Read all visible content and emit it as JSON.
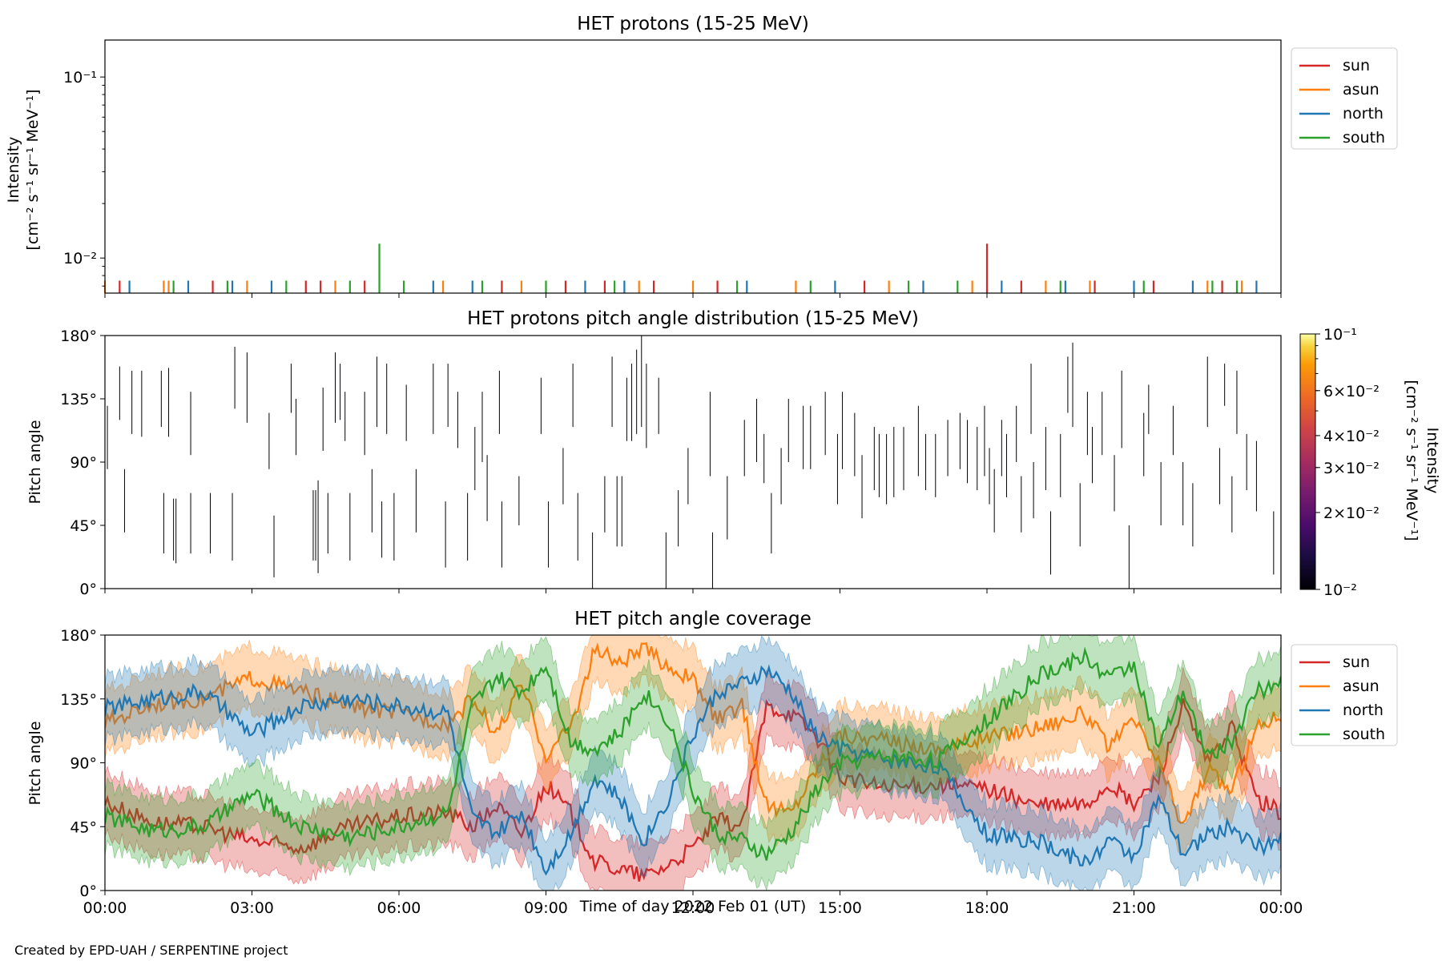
{
  "figure": {
    "xlabel": "Time of day 2022 Feb 01 (UT)",
    "credit": "Created by EPD-UAH / SERPENTINE project"
  },
  "colors": {
    "sun": "#d62728",
    "asun": "#ff7f0e",
    "north": "#1f77b4",
    "south": "#2ca02c"
  },
  "chart_data": [
    {
      "type": "bar",
      "title": "HET protons (15-25 MeV)",
      "ylabel_line1": "Intensity",
      "ylabel_line2": "[cm⁻² s⁻¹ sr⁻¹ MeV⁻¹]",
      "yscale": "log",
      "ylim": [
        0.0064,
        0.16
      ],
      "ytick_labels": [
        "10⁻²",
        "10⁻¹"
      ],
      "ytick_values": [
        0.01,
        0.1
      ],
      "xlim_hours": [
        0,
        24
      ],
      "xtick_labels": [
        "00:00",
        "03:00",
        "06:00",
        "09:00",
        "12:00",
        "15:00",
        "18:00",
        "21:00",
        "00:00"
      ],
      "baseline": 0.0075,
      "legend": {
        "placement": "upper-right-outside",
        "entries": [
          "sun",
          "asun",
          "north",
          "south"
        ]
      },
      "series": [
        {
          "name": "sun",
          "color": "#d62728",
          "x": [
            0.3,
            2.2,
            4.1,
            4.4,
            5.3,
            8.1,
            9.4,
            10.2,
            11.2,
            12.5,
            15.5,
            18.0,
            18.7,
            20.2,
            21.4,
            22.8
          ],
          "y": [
            0.0075,
            0.0075,
            0.0075,
            0.0075,
            0.0075,
            0.0075,
            0.0075,
            0.0075,
            0.0075,
            0.0075,
            0.0075,
            0.012,
            0.0075,
            0.0075,
            0.0075,
            0.0075
          ]
        },
        {
          "name": "asun",
          "color": "#ff7f0e",
          "x": [
            0.0,
            1.2,
            1.3,
            2.9,
            4.7,
            6.9,
            8.5,
            10.9,
            12.0,
            14.1,
            16.0,
            17.7,
            19.2,
            20.1,
            22.5,
            23.2
          ],
          "y": [
            0.0075,
            0.0075,
            0.0075,
            0.0075,
            0.0075,
            0.0075,
            0.0075,
            0.0075,
            0.0075,
            0.0075,
            0.0075,
            0.0075,
            0.0075,
            0.0075,
            0.0075,
            0.0075
          ]
        },
        {
          "name": "north",
          "color": "#1f77b4",
          "x": [
            0.5,
            1.7,
            2.6,
            3.4,
            6.7,
            7.5,
            9.8,
            10.6,
            13.1,
            14.9,
            16.7,
            18.3,
            19.6,
            21.0,
            22.2,
            23.5
          ],
          "y": [
            0.0075,
            0.0075,
            0.0075,
            0.0075,
            0.0075,
            0.0075,
            0.0075,
            0.0075,
            0.0075,
            0.0075,
            0.0075,
            0.0075,
            0.0075,
            0.0075,
            0.0075,
            0.0075
          ]
        },
        {
          "name": "south",
          "color": "#2ca02c",
          "x": [
            1.4,
            2.5,
            3.7,
            5.0,
            5.6,
            6.1,
            7.7,
            9.0,
            10.4,
            12.9,
            14.4,
            16.4,
            17.4,
            19.5,
            21.2,
            22.6,
            23.1
          ],
          "y": [
            0.0075,
            0.0075,
            0.0075,
            0.0075,
            0.012,
            0.0075,
            0.0075,
            0.0075,
            0.0075,
            0.0075,
            0.0075,
            0.0075,
            0.0075,
            0.0075,
            0.0075,
            0.0075,
            0.0075
          ]
        }
      ]
    },
    {
      "type": "heatmap",
      "title": "HET protons pitch angle distribution (15-25 MeV)",
      "ylabel": "Pitch angle",
      "ylim": [
        0,
        180
      ],
      "ytick_labels": [
        "0°",
        "45°",
        "90°",
        "135°",
        "180°"
      ],
      "ytick_values": [
        0,
        45,
        90,
        135,
        180
      ],
      "xlim_hours": [
        0,
        24
      ],
      "colorbar": {
        "scale": "log",
        "range": [
          0.01,
          0.1
        ],
        "label_line1": "Intensity",
        "label_line2": "[cm⁻² s⁻¹ sr⁻¹ MeV⁻¹]",
        "tick_values": [
          0.01,
          0.02,
          0.03,
          0.04,
          0.06,
          0.1
        ],
        "tick_labels": [
          "10⁻²",
          "2×10⁻²",
          "3×10⁻²",
          "4×10⁻²",
          "6×10⁻²",
          "10⁻¹"
        ]
      },
      "segments": [
        [
          0.05,
          85,
          130
        ],
        [
          0.3,
          120,
          158
        ],
        [
          0.4,
          40,
          85
        ],
        [
          0.55,
          110,
          155
        ],
        [
          0.75,
          108,
          155
        ],
        [
          1.15,
          115,
          155
        ],
        [
          1.2,
          25,
          68
        ],
        [
          1.3,
          108,
          157
        ],
        [
          1.4,
          20,
          64
        ],
        [
          1.45,
          18,
          64
        ],
        [
          1.75,
          25,
          68
        ],
        [
          1.75,
          95,
          140
        ],
        [
          2.15,
          25,
          68
        ],
        [
          2.6,
          20,
          68
        ],
        [
          2.65,
          128,
          172
        ],
        [
          2.9,
          118,
          168
        ],
        [
          3.35,
          85,
          125
        ],
        [
          3.45,
          8,
          52
        ],
        [
          3.8,
          125,
          160
        ],
        [
          3.9,
          95,
          135
        ],
        [
          4.25,
          20,
          70
        ],
        [
          4.3,
          20,
          70
        ],
        [
          4.35,
          11,
          77
        ],
        [
          4.45,
          98,
          143
        ],
        [
          4.55,
          25,
          68
        ],
        [
          4.7,
          118,
          168
        ],
        [
          4.8,
          120,
          160
        ],
        [
          4.9,
          105,
          140
        ],
        [
          5.0,
          20,
          68
        ],
        [
          5.3,
          95,
          140
        ],
        [
          5.45,
          40,
          85
        ],
        [
          5.55,
          115,
          165
        ],
        [
          5.65,
          22,
          62
        ],
        [
          5.75,
          110,
          160
        ],
        [
          5.9,
          20,
          68
        ],
        [
          6.15,
          105,
          145
        ],
        [
          6.35,
          40,
          85
        ],
        [
          6.7,
          110,
          160
        ],
        [
          6.95,
          15,
          62
        ],
        [
          7.0,
          115,
          160
        ],
        [
          7.2,
          100,
          140
        ],
        [
          7.4,
          20,
          68
        ],
        [
          7.55,
          70,
          115
        ],
        [
          7.7,
          90,
          140
        ],
        [
          7.8,
          48,
          95
        ],
        [
          8.05,
          110,
          155
        ],
        [
          8.1,
          15,
          62
        ],
        [
          8.45,
          45,
          80
        ],
        [
          8.9,
          110,
          150
        ],
        [
          9.05,
          15,
          62
        ],
        [
          9.35,
          60,
          100
        ],
        [
          9.55,
          115,
          160
        ],
        [
          9.65,
          20,
          68
        ],
        [
          9.95,
          0,
          40
        ],
        [
          10.2,
          40,
          80
        ],
        [
          10.35,
          115,
          165
        ],
        [
          10.45,
          30,
          80
        ],
        [
          10.55,
          30,
          80
        ],
        [
          10.65,
          105,
          150
        ],
        [
          10.75,
          105,
          160
        ],
        [
          10.85,
          110,
          170
        ],
        [
          10.95,
          115,
          180
        ],
        [
          11.05,
          100,
          160
        ],
        [
          11.3,
          110,
          150
        ],
        [
          11.45,
          0,
          40
        ],
        [
          11.7,
          30,
          70
        ],
        [
          11.9,
          60,
          100
        ],
        [
          12.35,
          80,
          140
        ],
        [
          12.4,
          0,
          40
        ],
        [
          12.7,
          35,
          80
        ],
        [
          13.05,
          80,
          120
        ],
        [
          13.3,
          90,
          135
        ],
        [
          13.45,
          75,
          110
        ],
        [
          13.6,
          25,
          68
        ],
        [
          13.8,
          60,
          100
        ],
        [
          13.95,
          90,
          135
        ],
        [
          14.25,
          85,
          130
        ],
        [
          14.4,
          85,
          130
        ],
        [
          14.7,
          95,
          140
        ],
        [
          14.95,
          60,
          110
        ],
        [
          15.05,
          85,
          140
        ],
        [
          15.3,
          80,
          125
        ],
        [
          15.45,
          50,
          95
        ],
        [
          15.7,
          70,
          115
        ],
        [
          15.8,
          65,
          110
        ],
        [
          15.95,
          60,
          110
        ],
        [
          16.1,
          65,
          115
        ],
        [
          16.3,
          70,
          115
        ],
        [
          16.6,
          80,
          130
        ],
        [
          16.75,
          70,
          110
        ],
        [
          16.95,
          65,
          110
        ],
        [
          17.2,
          80,
          120
        ],
        [
          17.45,
          85,
          125
        ],
        [
          17.6,
          75,
          120
        ],
        [
          17.8,
          70,
          115
        ],
        [
          17.95,
          80,
          130
        ],
        [
          18.05,
          60,
          100
        ],
        [
          18.15,
          40,
          85
        ],
        [
          18.3,
          80,
          120
        ],
        [
          18.4,
          65,
          110
        ],
        [
          18.6,
          90,
          130
        ],
        [
          18.7,
          40,
          80
        ],
        [
          18.9,
          110,
          160
        ],
        [
          18.95,
          50,
          90
        ],
        [
          19.2,
          70,
          115
        ],
        [
          19.3,
          10,
          55
        ],
        [
          19.5,
          65,
          110
        ],
        [
          19.65,
          125,
          165
        ],
        [
          19.75,
          115,
          175
        ],
        [
          19.9,
          30,
          75
        ],
        [
          20.05,
          95,
          140
        ],
        [
          20.15,
          75,
          115
        ],
        [
          20.35,
          95,
          140
        ],
        [
          20.6,
          55,
          95
        ],
        [
          20.75,
          100,
          155
        ],
        [
          20.9,
          0,
          45
        ],
        [
          21.2,
          80,
          125
        ],
        [
          21.3,
          110,
          145
        ],
        [
          21.55,
          45,
          90
        ],
        [
          21.8,
          95,
          130
        ],
        [
          22.0,
          45,
          90
        ],
        [
          22.2,
          30,
          75
        ],
        [
          22.5,
          115,
          165
        ],
        [
          22.75,
          60,
          100
        ],
        [
          22.85,
          130,
          160
        ],
        [
          23.0,
          40,
          80
        ],
        [
          23.1,
          110,
          155
        ],
        [
          23.3,
          70,
          110
        ],
        [
          23.5,
          55,
          105
        ],
        [
          23.85,
          10,
          55
        ]
      ]
    },
    {
      "type": "line",
      "title": "HET pitch angle coverage",
      "ylabel": "Pitch angle",
      "xlabel": "Time of day 2022 Feb 01 (UT)",
      "ylim": [
        0,
        180
      ],
      "ytick_labels": [
        "0°",
        "45°",
        "90°",
        "135°",
        "180°"
      ],
      "ytick_values": [
        0,
        45,
        90,
        135,
        180
      ],
      "xlim_hours": [
        0,
        24
      ],
      "xtick_labels": [
        "00:00",
        "03:00",
        "06:00",
        "09:00",
        "12:00",
        "15:00",
        "18:00",
        "21:00",
        "00:00"
      ],
      "band_halfwidth_deg": 22,
      "legend": {
        "placement": "upper-right-outside",
        "entries": [
          "sun",
          "asun",
          "north",
          "south"
        ]
      },
      "series": [
        {
          "name": "sun",
          "color": "#d62728",
          "x": [
            0,
            1,
            2,
            3,
            4,
            5,
            6,
            7,
            7.5,
            8,
            8.5,
            9,
            9.5,
            10,
            10.5,
            11,
            11.5,
            12,
            12.5,
            13,
            13.5,
            14,
            14.5,
            15,
            16,
            17,
            18,
            19,
            20,
            20.5,
            21,
            21.5,
            22,
            22.5,
            23,
            23.5,
            24
          ],
          "y": [
            62,
            48,
            45,
            35,
            30,
            45,
            52,
            55,
            45,
            60,
            40,
            75,
            55,
            20,
            15,
            10,
            18,
            30,
            50,
            45,
            130,
            125,
            110,
            80,
            72,
            75,
            72,
            60,
            60,
            75,
            60,
            80,
            130,
            90,
            115,
            65,
            55
          ]
        },
        {
          "name": "asun",
          "color": "#ff7f0e",
          "x": [
            0,
            1,
            2,
            3,
            4,
            5,
            6,
            7,
            7.5,
            8,
            8.5,
            9,
            9.5,
            10,
            10.5,
            11,
            11.5,
            12,
            12.5,
            13,
            13.5,
            14,
            14.5,
            15,
            16,
            17,
            18,
            19,
            20,
            20.5,
            21,
            21.5,
            22,
            22.5,
            23,
            23.5,
            24
          ],
          "y": [
            118,
            132,
            135,
            150,
            140,
            130,
            125,
            118,
            135,
            110,
            145,
            95,
            115,
            170,
            160,
            170,
            158,
            148,
            120,
            130,
            60,
            55,
            85,
            110,
            105,
            100,
            108,
            115,
            125,
            100,
            120,
            90,
            45,
            85,
            70,
            115,
            125
          ]
        },
        {
          "name": "north",
          "color": "#1f77b4",
          "x": [
            0,
            1,
            2,
            3,
            4,
            5,
            6,
            7,
            7.5,
            8,
            8.5,
            9,
            9.5,
            10,
            10.5,
            11,
            11.5,
            12,
            12.5,
            13,
            13.5,
            14,
            14.5,
            15,
            16,
            17,
            18,
            19,
            20,
            20.5,
            21,
            21.5,
            22,
            22.5,
            23,
            23.5,
            24
          ],
          "y": [
            128,
            135,
            140,
            110,
            130,
            135,
            130,
            125,
            50,
            40,
            55,
            15,
            40,
            80,
            65,
            35,
            65,
            110,
            140,
            145,
            155,
            140,
            110,
            100,
            92,
            88,
            40,
            35,
            20,
            35,
            25,
            65,
            25,
            40,
            45,
            30,
            35
          ]
        },
        {
          "name": "south",
          "color": "#2ca02c",
          "x": [
            0,
            1,
            2,
            3,
            4,
            5,
            6,
            7,
            7.5,
            8,
            8.5,
            9,
            9.5,
            10,
            10.5,
            11,
            11.5,
            12,
            12.5,
            13,
            13.5,
            14,
            14.5,
            15,
            16,
            17,
            18,
            19,
            20,
            20.5,
            21,
            21.5,
            22,
            22.5,
            23,
            23.5,
            24
          ],
          "y": [
            52,
            42,
            45,
            68,
            45,
            38,
            45,
            55,
            130,
            150,
            140,
            160,
            105,
            100,
            110,
            140,
            120,
            70,
            40,
            35,
            25,
            40,
            70,
            90,
            95,
            92,
            120,
            150,
            165,
            150,
            160,
            100,
            140,
            95,
            105,
            140,
            145
          ]
        }
      ]
    }
  ]
}
